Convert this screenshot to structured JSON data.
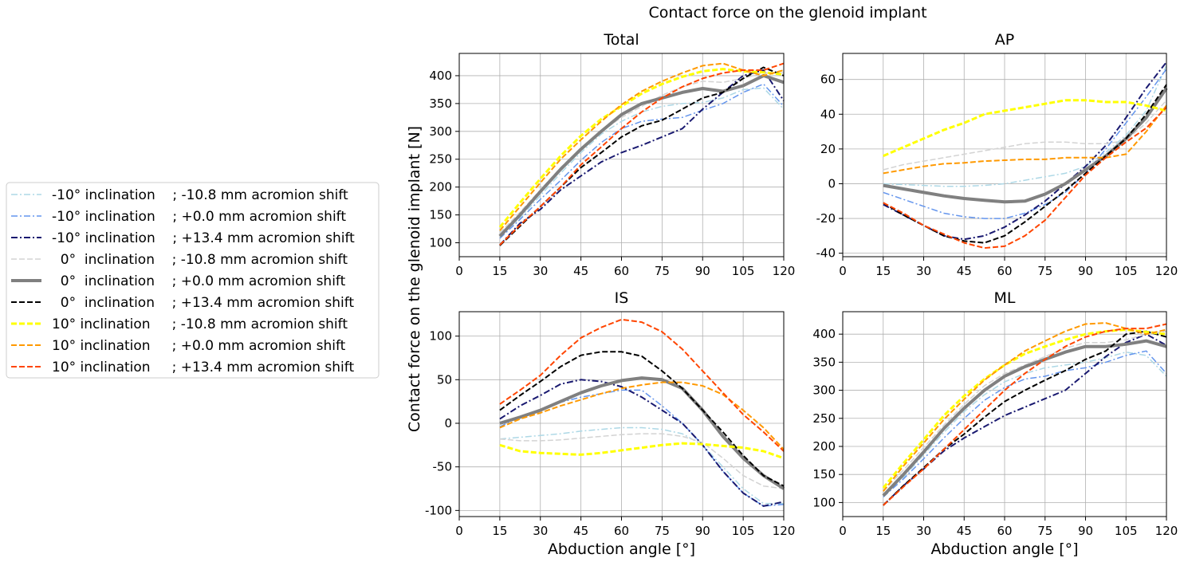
{
  "figure": {
    "title": "Contact force on the glenoid implant",
    "ylabel": "Contact force on the glenoid implant [N]",
    "xlabel": "Abduction angle [°]"
  },
  "legend": [
    {
      "label": "-10° inclination    ; -10.8 mm acromion shift",
      "color": "#add8e6",
      "dash": "dashdot",
      "width": 1.5
    },
    {
      "label": "-10° inclination    ; +0.0 mm acromion shift",
      "color": "#6495ed",
      "dash": "dashdot",
      "width": 1.5
    },
    {
      "label": "-10° inclination    ; +13.4 mm acromion shift",
      "color": "#191970",
      "dash": "dashdot",
      "width": 2
    },
    {
      "label": "  0°  inclination    ; -10.8 mm acromion shift",
      "color": "#d3d3d3",
      "dash": "dashed",
      "width": 1.5
    },
    {
      "label": "  0°  inclination    ; +0.0 mm acromion shift",
      "color": "#808080",
      "dash": "solid",
      "width": 4
    },
    {
      "label": "  0°  inclination    ; +13.4 mm acromion shift",
      "color": "#000000",
      "dash": "dashed",
      "width": 2
    },
    {
      "label": "10° inclination     ; -10.8 mm acromion shift",
      "color": "#ffff00",
      "dash": "dashed",
      "width": 3
    },
    {
      "label": "10° inclination     ; +0.0 mm acromion shift",
      "color": "#ff9900",
      "dash": "dashed",
      "width": 2
    },
    {
      "label": "10° inclination     ; +13.4 mm acromion shift",
      "color": "#ff4500",
      "dash": "dashed",
      "width": 2
    }
  ],
  "chart_data": [
    {
      "type": "line",
      "title": "Total",
      "xlim": [
        0,
        120
      ],
      "ylim": [
        75,
        440
      ],
      "xticks": [
        0,
        15,
        30,
        45,
        60,
        75,
        90,
        105,
        120
      ],
      "yticks": [
        100,
        150,
        200,
        250,
        300,
        350,
        400
      ],
      "grid": true,
      "show_xlabel": false,
      "x": [
        15,
        22.5,
        30,
        37.5,
        45,
        52.5,
        60,
        67.5,
        75,
        82.5,
        90,
        97.5,
        105,
        112.5,
        120
      ],
      "series": [
        {
          "values": [
            112,
            145,
            185,
            225,
            262,
            295,
            318,
            335,
            345,
            350,
            352,
            360,
            375,
            378,
            340
          ]
        },
        {
          "values": [
            108,
            142,
            178,
            212,
            248,
            280,
            305,
            318,
            322,
            325,
            338,
            350,
            370,
            385,
            345
          ]
        },
        {
          "values": [
            96,
            135,
            160,
            195,
            220,
            245,
            262,
            275,
            290,
            305,
            340,
            370,
            400,
            410,
            355
          ]
        },
        {
          "values": [
            118,
            155,
            195,
            235,
            270,
            300,
            325,
            345,
            365,
            380,
            390,
            388,
            395,
            405,
            405
          ]
        },
        {
          "values": [
            112,
            150,
            192,
            232,
            268,
            300,
            330,
            350,
            360,
            370,
            377,
            372,
            382,
            400,
            388
          ]
        },
        {
          "values": [
            95,
            130,
            165,
            200,
            235,
            262,
            290,
            310,
            320,
            340,
            360,
            370,
            395,
            415,
            400
          ]
        },
        {
          "values": [
            128,
            172,
            215,
            256,
            292,
            322,
            345,
            368,
            385,
            398,
            408,
            412,
            408,
            406,
            402
          ]
        },
        {
          "values": [
            122,
            165,
            208,
            250,
            285,
            318,
            348,
            372,
            390,
            405,
            418,
            422,
            410,
            400,
            410
          ]
        },
        {
          "values": [
            96,
            132,
            165,
            200,
            240,
            272,
            305,
            335,
            360,
            380,
            395,
            405,
            410,
            410,
            422
          ]
        }
      ]
    },
    {
      "type": "line",
      "title": "AP",
      "xlim": [
        0,
        120
      ],
      "ylim": [
        -42,
        75
      ],
      "xticks": [
        0,
        15,
        30,
        45,
        60,
        75,
        90,
        105,
        120
      ],
      "yticks": [
        -40,
        -20,
        0,
        20,
        40,
        60
      ],
      "grid": true,
      "show_xlabel": false,
      "x": [
        15,
        22.5,
        30,
        37.5,
        45,
        52.5,
        60,
        67.5,
        75,
        82.5,
        90,
        97.5,
        105,
        112.5,
        120
      ],
      "series": [
        {
          "values": [
            0,
            -0.5,
            -1,
            -1.5,
            -1.5,
            -1,
            0,
            2,
            4,
            6,
            10,
            18,
            28,
            42,
            68
          ]
        },
        {
          "values": [
            -5,
            -9,
            -13,
            -17,
            -19,
            -20,
            -20,
            -17,
            -12,
            -5,
            6,
            20,
            35,
            50,
            66
          ]
        },
        {
          "values": [
            -12,
            -18,
            -24,
            -30,
            -32,
            -30,
            -25,
            -18,
            -10,
            0,
            10,
            22,
            38,
            55,
            70
          ]
        },
        {
          "values": [
            8,
            11,
            13,
            15,
            17,
            19,
            21,
            23,
            24,
            24,
            23,
            23,
            25,
            35,
            48
          ]
        },
        {
          "values": [
            -1,
            -3,
            -5,
            -7,
            -8.5,
            -9.5,
            -10.5,
            -10,
            -6,
            0,
            8,
            16,
            26,
            38,
            55
          ]
        },
        {
          "values": [
            -11,
            -18,
            -24,
            -30,
            -33,
            -34,
            -30,
            -22,
            -13,
            -4,
            6,
            16,
            26,
            40,
            57
          ]
        },
        {
          "values": [
            16,
            21,
            26,
            31,
            35,
            40,
            42,
            44,
            46,
            48,
            48,
            47,
            47,
            45,
            42
          ]
        },
        {
          "values": [
            6,
            8,
            10,
            11.5,
            12,
            13,
            13.5,
            14,
            14,
            15,
            15,
            15,
            17,
            30,
            45
          ]
        },
        {
          "values": [
            -11,
            -17,
            -24,
            -29,
            -34,
            -37,
            -36,
            -30,
            -21,
            -8,
            5,
            15,
            24,
            32,
            44
          ]
        }
      ]
    },
    {
      "type": "line",
      "title": "IS",
      "xlim": [
        0,
        120
      ],
      "ylim": [
        -107,
        128
      ],
      "xticks": [
        0,
        15,
        30,
        45,
        60,
        75,
        90,
        105,
        120
      ],
      "yticks": [
        -100,
        -50,
        0,
        50,
        100
      ],
      "grid": true,
      "show_xlabel": true,
      "x": [
        15,
        22.5,
        30,
        37.5,
        45,
        52.5,
        60,
        67.5,
        75,
        82.5,
        90,
        97.5,
        105,
        112.5,
        120
      ],
      "series": [
        {
          "values": [
            -18,
            -16,
            -14,
            -12,
            -9,
            -7,
            -5,
            -5,
            -7,
            -12,
            -25,
            -50,
            -75,
            -92,
            -92
          ]
        },
        {
          "values": [
            -4,
            8,
            16,
            24,
            30,
            34,
            38,
            38,
            20,
            0,
            -25,
            -55,
            -80,
            -95,
            -93
          ]
        },
        {
          "values": [
            5,
            20,
            32,
            45,
            50,
            48,
            42,
            30,
            15,
            0,
            -25,
            -55,
            -80,
            -95,
            -90
          ]
        },
        {
          "values": [
            -18,
            -20,
            -20,
            -19,
            -17,
            -15,
            -13,
            -12,
            -12,
            -15,
            -22,
            -40,
            -60,
            -72,
            -75
          ]
        },
        {
          "values": [
            0,
            7,
            15,
            25,
            35,
            43,
            49,
            52,
            50,
            40,
            15,
            -15,
            -40,
            -60,
            -75
          ]
        },
        {
          "values": [
            15,
            32,
            48,
            65,
            78,
            82,
            82,
            77,
            60,
            40,
            15,
            -10,
            -37,
            -60,
            -72
          ]
        },
        {
          "values": [
            -25,
            -32,
            -34,
            -35,
            -36,
            -34,
            -31,
            -28,
            -25,
            -23,
            -24,
            -26,
            -28,
            -32,
            -40
          ]
        },
        {
          "values": [
            -5,
            5,
            12,
            20,
            27,
            34,
            40,
            44,
            47,
            47,
            43,
            33,
            15,
            -5,
            -30
          ]
        },
        {
          "values": [
            22,
            38,
            55,
            78,
            98,
            110,
            119,
            116,
            105,
            85,
            60,
            35,
            10,
            -10,
            -32
          ]
        }
      ]
    },
    {
      "type": "line",
      "title": "ML",
      "xlim": [
        0,
        120
      ],
      "ylim": [
        75,
        440
      ],
      "xticks": [
        0,
        15,
        30,
        45,
        60,
        75,
        90,
        105,
        120
      ],
      "yticks": [
        100,
        150,
        200,
        250,
        300,
        350,
        400
      ],
      "grid": true,
      "show_xlabel": true,
      "x": [
        15,
        22.5,
        30,
        37.5,
        45,
        52.5,
        60,
        67.5,
        75,
        82.5,
        90,
        97.5,
        105,
        112.5,
        120
      ],
      "series": [
        {
          "values": [
            112,
            145,
            185,
            225,
            262,
            292,
            315,
            330,
            340,
            345,
            350,
            358,
            368,
            362,
            325
          ]
        },
        {
          "values": [
            110,
            142,
            178,
            215,
            250,
            282,
            305,
            320,
            325,
            335,
            340,
            350,
            362,
            370,
            330
          ]
        },
        {
          "values": [
            95,
            130,
            160,
            192,
            215,
            235,
            255,
            270,
            285,
            300,
            330,
            360,
            385,
            400,
            380
          ]
        },
        {
          "values": [
            120,
            158,
            198,
            238,
            275,
            308,
            330,
            345,
            360,
            375,
            385,
            385,
            390,
            400,
            405
          ]
        },
        {
          "values": [
            112,
            150,
            190,
            232,
            268,
            300,
            325,
            342,
            355,
            368,
            378,
            378,
            382,
            388,
            378
          ]
        },
        {
          "values": [
            95,
            130,
            162,
            195,
            222,
            252,
            280,
            300,
            318,
            335,
            355,
            370,
            400,
            405,
            395
          ]
        },
        {
          "values": [
            126,
            170,
            212,
            255,
            290,
            320,
            345,
            365,
            378,
            390,
            400,
            405,
            408,
            404,
            400
          ]
        },
        {
          "values": [
            120,
            165,
            206,
            248,
            284,
            318,
            345,
            370,
            388,
            405,
            418,
            420,
            410,
            400,
            408
          ]
        },
        {
          "values": [
            95,
            128,
            160,
            195,
            230,
            265,
            300,
            330,
            355,
            378,
            395,
            405,
            410,
            410,
            418
          ]
        }
      ]
    }
  ]
}
